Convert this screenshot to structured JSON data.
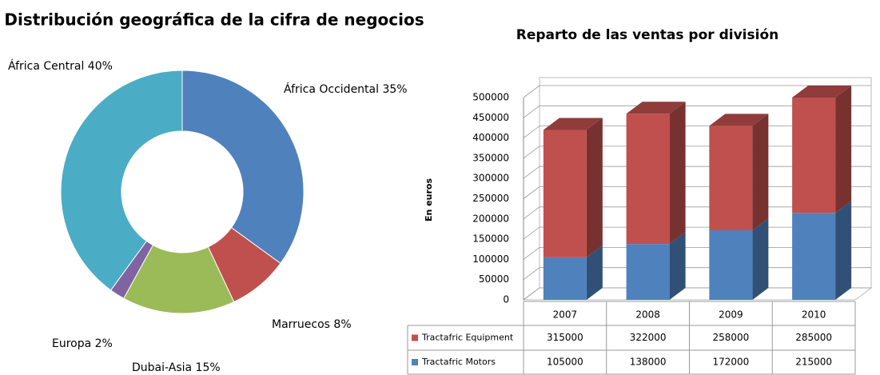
{
  "chart_data": [
    {
      "type": "donut",
      "title": "Distribución geográfica de la cifra de negocios",
      "values": [
        35,
        8,
        15,
        2,
        40
      ],
      "value_labels": [
        "África Occidental 35%",
        "Marruecos 8%",
        "Dubai-Asia 15%",
        "Europa 2%",
        "África Central 40%"
      ],
      "colors": [
        "#4f81bd",
        "#c0504d",
        "#9bbb59",
        "#8064a2",
        "#4bacc6"
      ]
    },
    {
      "type": "stacked-bar-3d",
      "title": "Reparto de las ventas por división",
      "y_label": "En euros",
      "categories": [
        "2007",
        "2008",
        "2009",
        "2010"
      ],
      "series": [
        {
          "name": "Tractafric Motors",
          "color": "#4f81bd",
          "values": [
            105000,
            138000,
            172000,
            215000
          ]
        },
        {
          "name": "Tractafric Equipment",
          "color": "#c0504d",
          "values": [
            315000,
            322000,
            258000,
            285000
          ]
        }
      ],
      "ylim": [
        0,
        500000
      ],
      "yticks": [
        0,
        50000,
        100000,
        150000,
        200000,
        250000,
        300000,
        350000,
        400000,
        450000,
        500000
      ],
      "grid": true,
      "data_table": true
    }
  ]
}
